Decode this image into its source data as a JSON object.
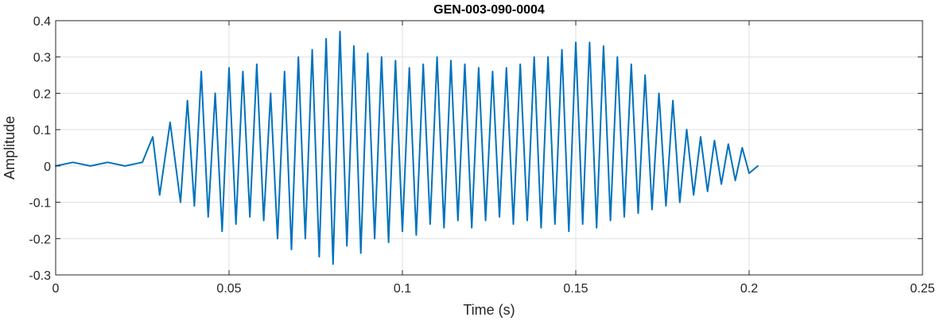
{
  "chart_data": {
    "type": "line",
    "title": "GEN-003-090-0004",
    "xlabel": "Time (s)",
    "ylabel": "Amplitude",
    "xlim": [
      0,
      0.25
    ],
    "ylim": [
      -0.3,
      0.4
    ],
    "xticks": [
      0,
      0.05,
      0.1,
      0.15,
      0.2,
      0.25
    ],
    "xtick_labels": [
      "0",
      "0.05",
      "0.1",
      "0.15",
      "0.2",
      "0.25"
    ],
    "yticks": [
      -0.3,
      -0.2,
      -0.1,
      0,
      0.1,
      0.2,
      0.3,
      0.4
    ],
    "ytick_labels": [
      "-0.3",
      "-0.2",
      "-0.1",
      "0",
      "0.1",
      "0.2",
      "0.3",
      "0.4"
    ],
    "grid": true,
    "line_color": "#0072BD",
    "series": [
      {
        "x": [
          0,
          0.005,
          0.01,
          0.015,
          0.02,
          0.025,
          0.028,
          0.03,
          0.033,
          0.036,
          0.038,
          0.04,
          0.042,
          0.044,
          0.046,
          0.048,
          0.05,
          0.052,
          0.054,
          0.056,
          0.058,
          0.06,
          0.062,
          0.064,
          0.066,
          0.068,
          0.07,
          0.072,
          0.074,
          0.076,
          0.078,
          0.08,
          0.082,
          0.084,
          0.086,
          0.088,
          0.09,
          0.092,
          0.094,
          0.096,
          0.098,
          0.1,
          0.102,
          0.104,
          0.106,
          0.108,
          0.11,
          0.112,
          0.114,
          0.116,
          0.118,
          0.12,
          0.122,
          0.124,
          0.126,
          0.128,
          0.13,
          0.132,
          0.134,
          0.136,
          0.138,
          0.14,
          0.142,
          0.144,
          0.146,
          0.148,
          0.15,
          0.152,
          0.154,
          0.156,
          0.158,
          0.16,
          0.162,
          0.164,
          0.166,
          0.168,
          0.17,
          0.172,
          0.174,
          0.176,
          0.178,
          0.18,
          0.182,
          0.184,
          0.186,
          0.188,
          0.19,
          0.192,
          0.194,
          0.196,
          0.198,
          0.2,
          0.2025
        ],
        "y": [
          0,
          0.01,
          0,
          0.01,
          0,
          0.01,
          0.08,
          -0.08,
          0.12,
          -0.1,
          0.18,
          -0.11,
          0.26,
          -0.14,
          0.2,
          -0.18,
          0.27,
          -0.16,
          0.26,
          -0.14,
          0.28,
          -0.15,
          0.2,
          -0.2,
          0.26,
          -0.23,
          0.3,
          -0.2,
          0.32,
          -0.25,
          0.35,
          -0.27,
          0.37,
          -0.22,
          0.33,
          -0.24,
          0.31,
          -0.2,
          0.3,
          -0.21,
          0.29,
          -0.18,
          0.27,
          -0.19,
          0.28,
          -0.16,
          0.3,
          -0.17,
          0.29,
          -0.15,
          0.28,
          -0.17,
          0.27,
          -0.15,
          0.26,
          -0.14,
          0.27,
          -0.16,
          0.28,
          -0.15,
          0.3,
          -0.17,
          0.3,
          -0.16,
          0.32,
          -0.18,
          0.34,
          -0.16,
          0.34,
          -0.17,
          0.33,
          -0.15,
          0.3,
          -0.14,
          0.28,
          -0.13,
          0.25,
          -0.12,
          0.2,
          -0.11,
          0.18,
          -0.1,
          0.1,
          -0.08,
          0.08,
          -0.07,
          0.07,
          -0.05,
          0.06,
          -0.04,
          0.05,
          -0.02,
          0
        ]
      }
    ]
  }
}
